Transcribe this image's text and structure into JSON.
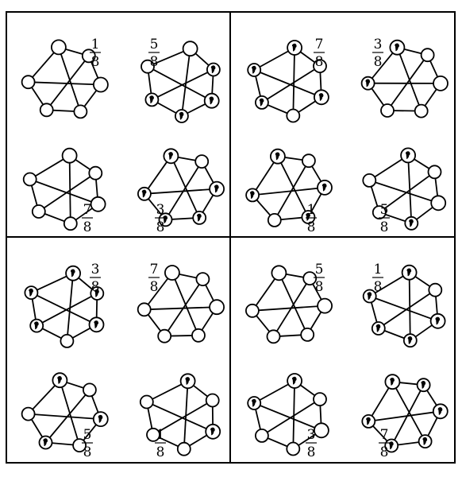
{
  "diagram": {
    "quadrants": [
      {
        "graphs": [
          {
            "label": {
              "numerator": "1",
              "denominator": "8"
            },
            "commas": []
          },
          {
            "label": {
              "numerator": "5",
              "denominator": "8"
            },
            "commas": [
              "vertex-4",
              "vertex-3",
              "vertex-2",
              "vertex-1"
            ]
          },
          {
            "label": {
              "numerator": "7",
              "denominator": "8"
            },
            "commas": []
          },
          {
            "label": {
              "numerator": "3",
              "denominator": "8"
            },
            "commas": [
              "vertex-0",
              "vertex-2",
              "vertex-3",
              "vertex-4",
              "vertex-5"
            ]
          }
        ]
      },
      {
        "graphs": [
          {
            "label": {
              "numerator": "7",
              "denominator": "8"
            },
            "commas": [
              "vertex-0",
              "vertex-2",
              "vertex-4",
              "vertex-5"
            ]
          },
          {
            "label": {
              "numerator": "3",
              "denominator": "8"
            },
            "commas": [
              "vertex-0",
              "vertex-5"
            ]
          },
          {
            "label": {
              "numerator": "1",
              "denominator": "8"
            },
            "commas": [
              "vertex-0",
              "vertex-2",
              "vertex-3",
              "vertex-5"
            ]
          },
          {
            "label": {
              "numerator": "5",
              "denominator": "8"
            },
            "commas": [
              "vertex-0",
              "vertex-3"
            ]
          }
        ]
      },
      {
        "graphs": [
          {
            "label": {
              "numerator": "3",
              "denominator": "8"
            },
            "commas": [
              "vertex-0",
              "vertex-1",
              "vertex-2",
              "vertex-4",
              "vertex-5"
            ]
          },
          {
            "label": {
              "numerator": "7",
              "denominator": "8"
            },
            "commas": []
          },
          {
            "label": {
              "numerator": "5",
              "denominator": "8"
            },
            "commas": [
              "vertex-0",
              "vertex-2",
              "vertex-4"
            ]
          },
          {
            "label": {
              "numerator": "1",
              "denominator": "8"
            },
            "commas": [
              "vertex-0",
              "vertex-2"
            ]
          }
        ]
      },
      {
        "graphs": [
          {
            "label": {
              "numerator": "5",
              "denominator": "8"
            },
            "commas": []
          },
          {
            "label": {
              "numerator": "1",
              "denominator": "8"
            },
            "commas": [
              "vertex-0",
              "vertex-2",
              "vertex-3",
              "vertex-4",
              "vertex-5"
            ]
          },
          {
            "label": {
              "numerator": "3",
              "denominator": "8"
            },
            "commas": [
              "vertex-0",
              "vertex-5"
            ]
          },
          {
            "label": {
              "numerator": "7",
              "denominator": "8"
            },
            "commas": [
              "vertex-0",
              "vertex-1",
              "vertex-2",
              "vertex-3",
              "vertex-4",
              "vertex-5"
            ]
          }
        ]
      }
    ]
  }
}
